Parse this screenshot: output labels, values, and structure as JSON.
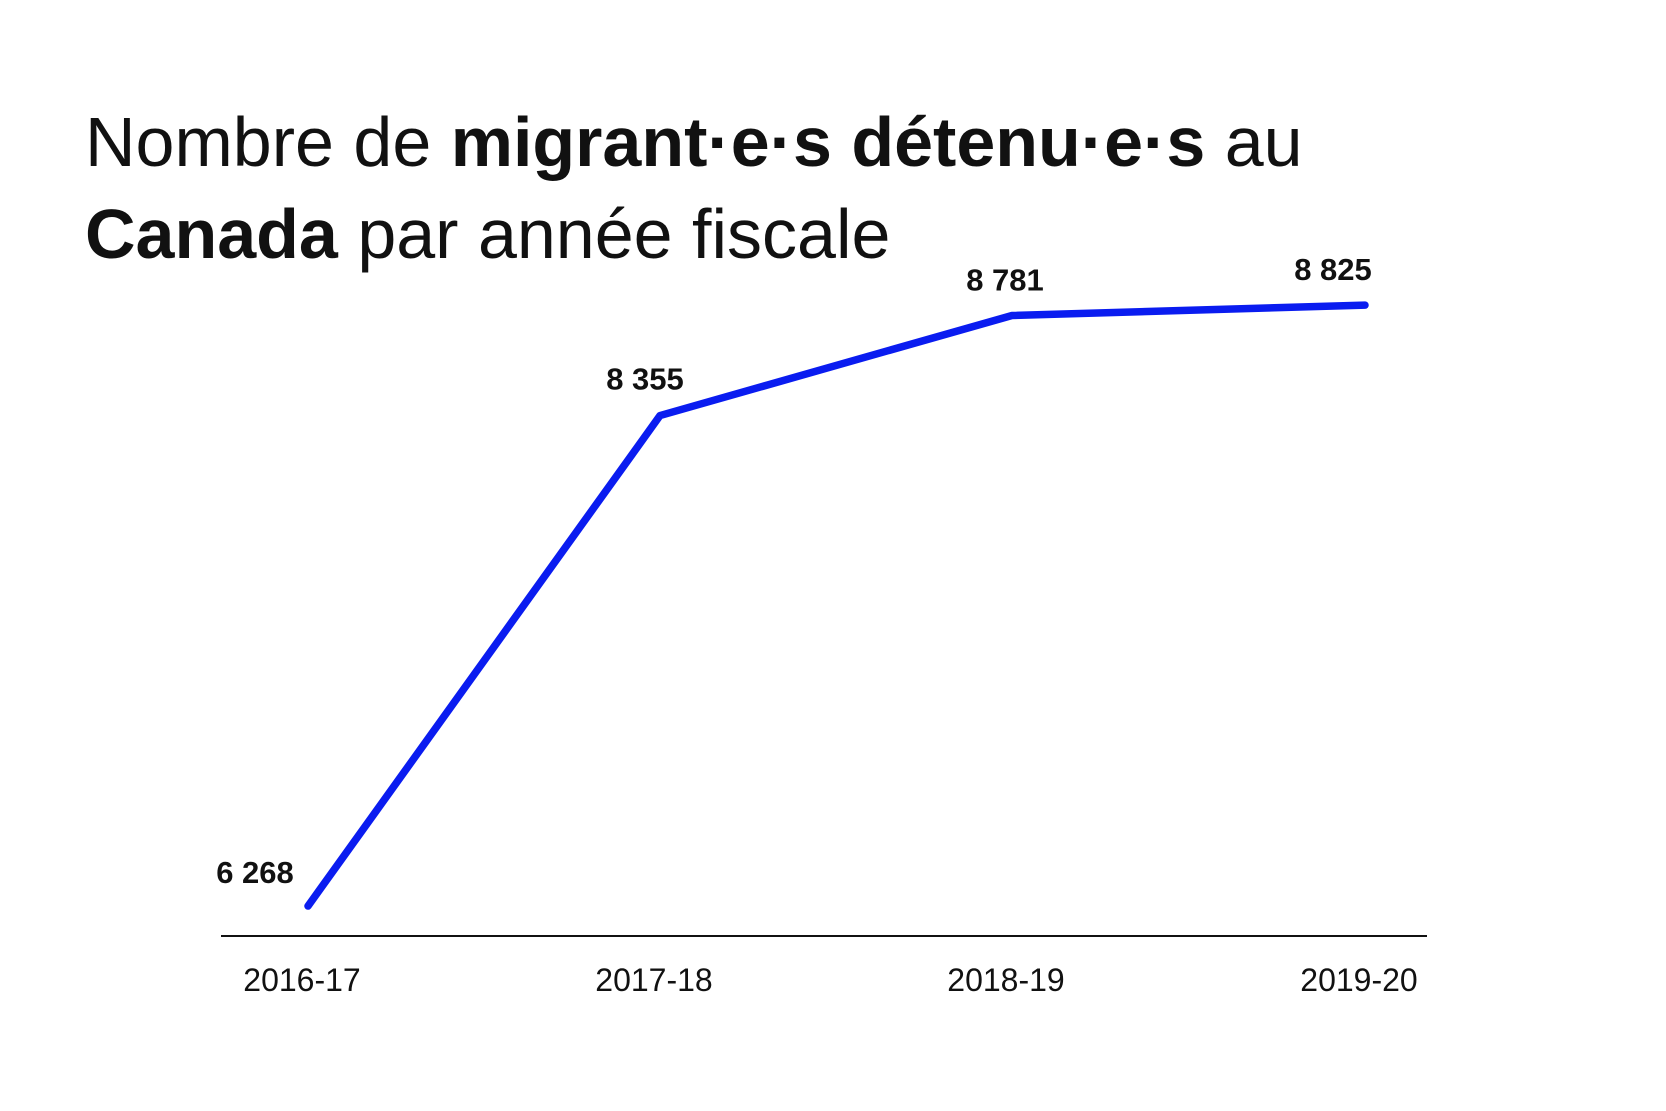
{
  "title": {
    "parts": [
      {
        "text": "Nombre de ",
        "bold": false
      },
      {
        "text": "migrant·e·s détenu·e·s",
        "bold": true
      },
      {
        "text": " au",
        "bold": false
      },
      {
        "text": "Canada",
        "bold": true,
        "newline": true
      },
      {
        "text": " par année fiscale",
        "bold": false
      }
    ]
  },
  "chart_data": {
    "type": "line",
    "title": "Nombre de migrant·e·s détenu·e·s au Canada par année fiscale",
    "categories": [
      "2016-17",
      "2017-18",
      "2018-19",
      "2019-20"
    ],
    "values": [
      6268,
      8355,
      8781,
      8825
    ],
    "data_labels": [
      "6 268",
      "8 355",
      "8 781",
      "8 825"
    ],
    "xlabel": "",
    "ylabel": "",
    "ylim": [
      6000,
      9000
    ],
    "grid": false,
    "y_axis_visible": false,
    "line_color": "#0a1cf0",
    "axis_color": "#111111"
  }
}
